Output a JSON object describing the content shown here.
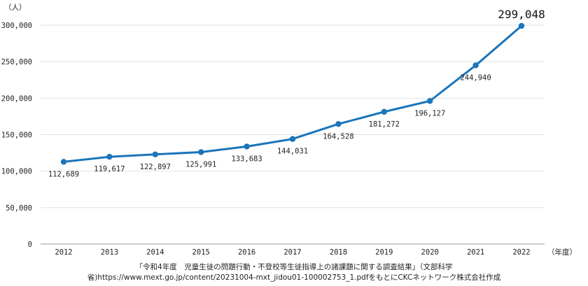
{
  "chart_data": {
    "type": "line",
    "x": [
      "2012",
      "2013",
      "2014",
      "2015",
      "2016",
      "2017",
      "2018",
      "2019",
      "2020",
      "2021",
      "2022"
    ],
    "series": [
      {
        "values": [
          112689,
          119617,
          122897,
          125991,
          133683,
          144031,
          164528,
          181272,
          196127,
          244940,
          299048
        ]
      }
    ],
    "data_labels": [
      "112,689",
      "119,617",
      "122,897",
      "125,991",
      "133,683",
      "144,031",
      "164,528",
      "181,272",
      "196,127",
      "244,940",
      "299,048"
    ],
    "y_ticks": [
      "0",
      "50,000",
      "100,000",
      "150,000",
      "200,000",
      "250,000",
      "300,000"
    ],
    "ylim": [
      0,
      300000
    ],
    "y_unit": "（人）",
    "x_unit": "（年度）",
    "grid": true,
    "line_color": "#1a75bb"
  },
  "source": {
    "line1": "「令和4年度　児童生徒の問題行動・不登校等生徒指導上の諸課題に関する調査結果」（文部科学",
    "line2": "省)https://www.mext.go.jp/content/20231004-mxt_jidou01-100002753_1.pdfをもとにCKCネットワーク株式会社作成"
  }
}
